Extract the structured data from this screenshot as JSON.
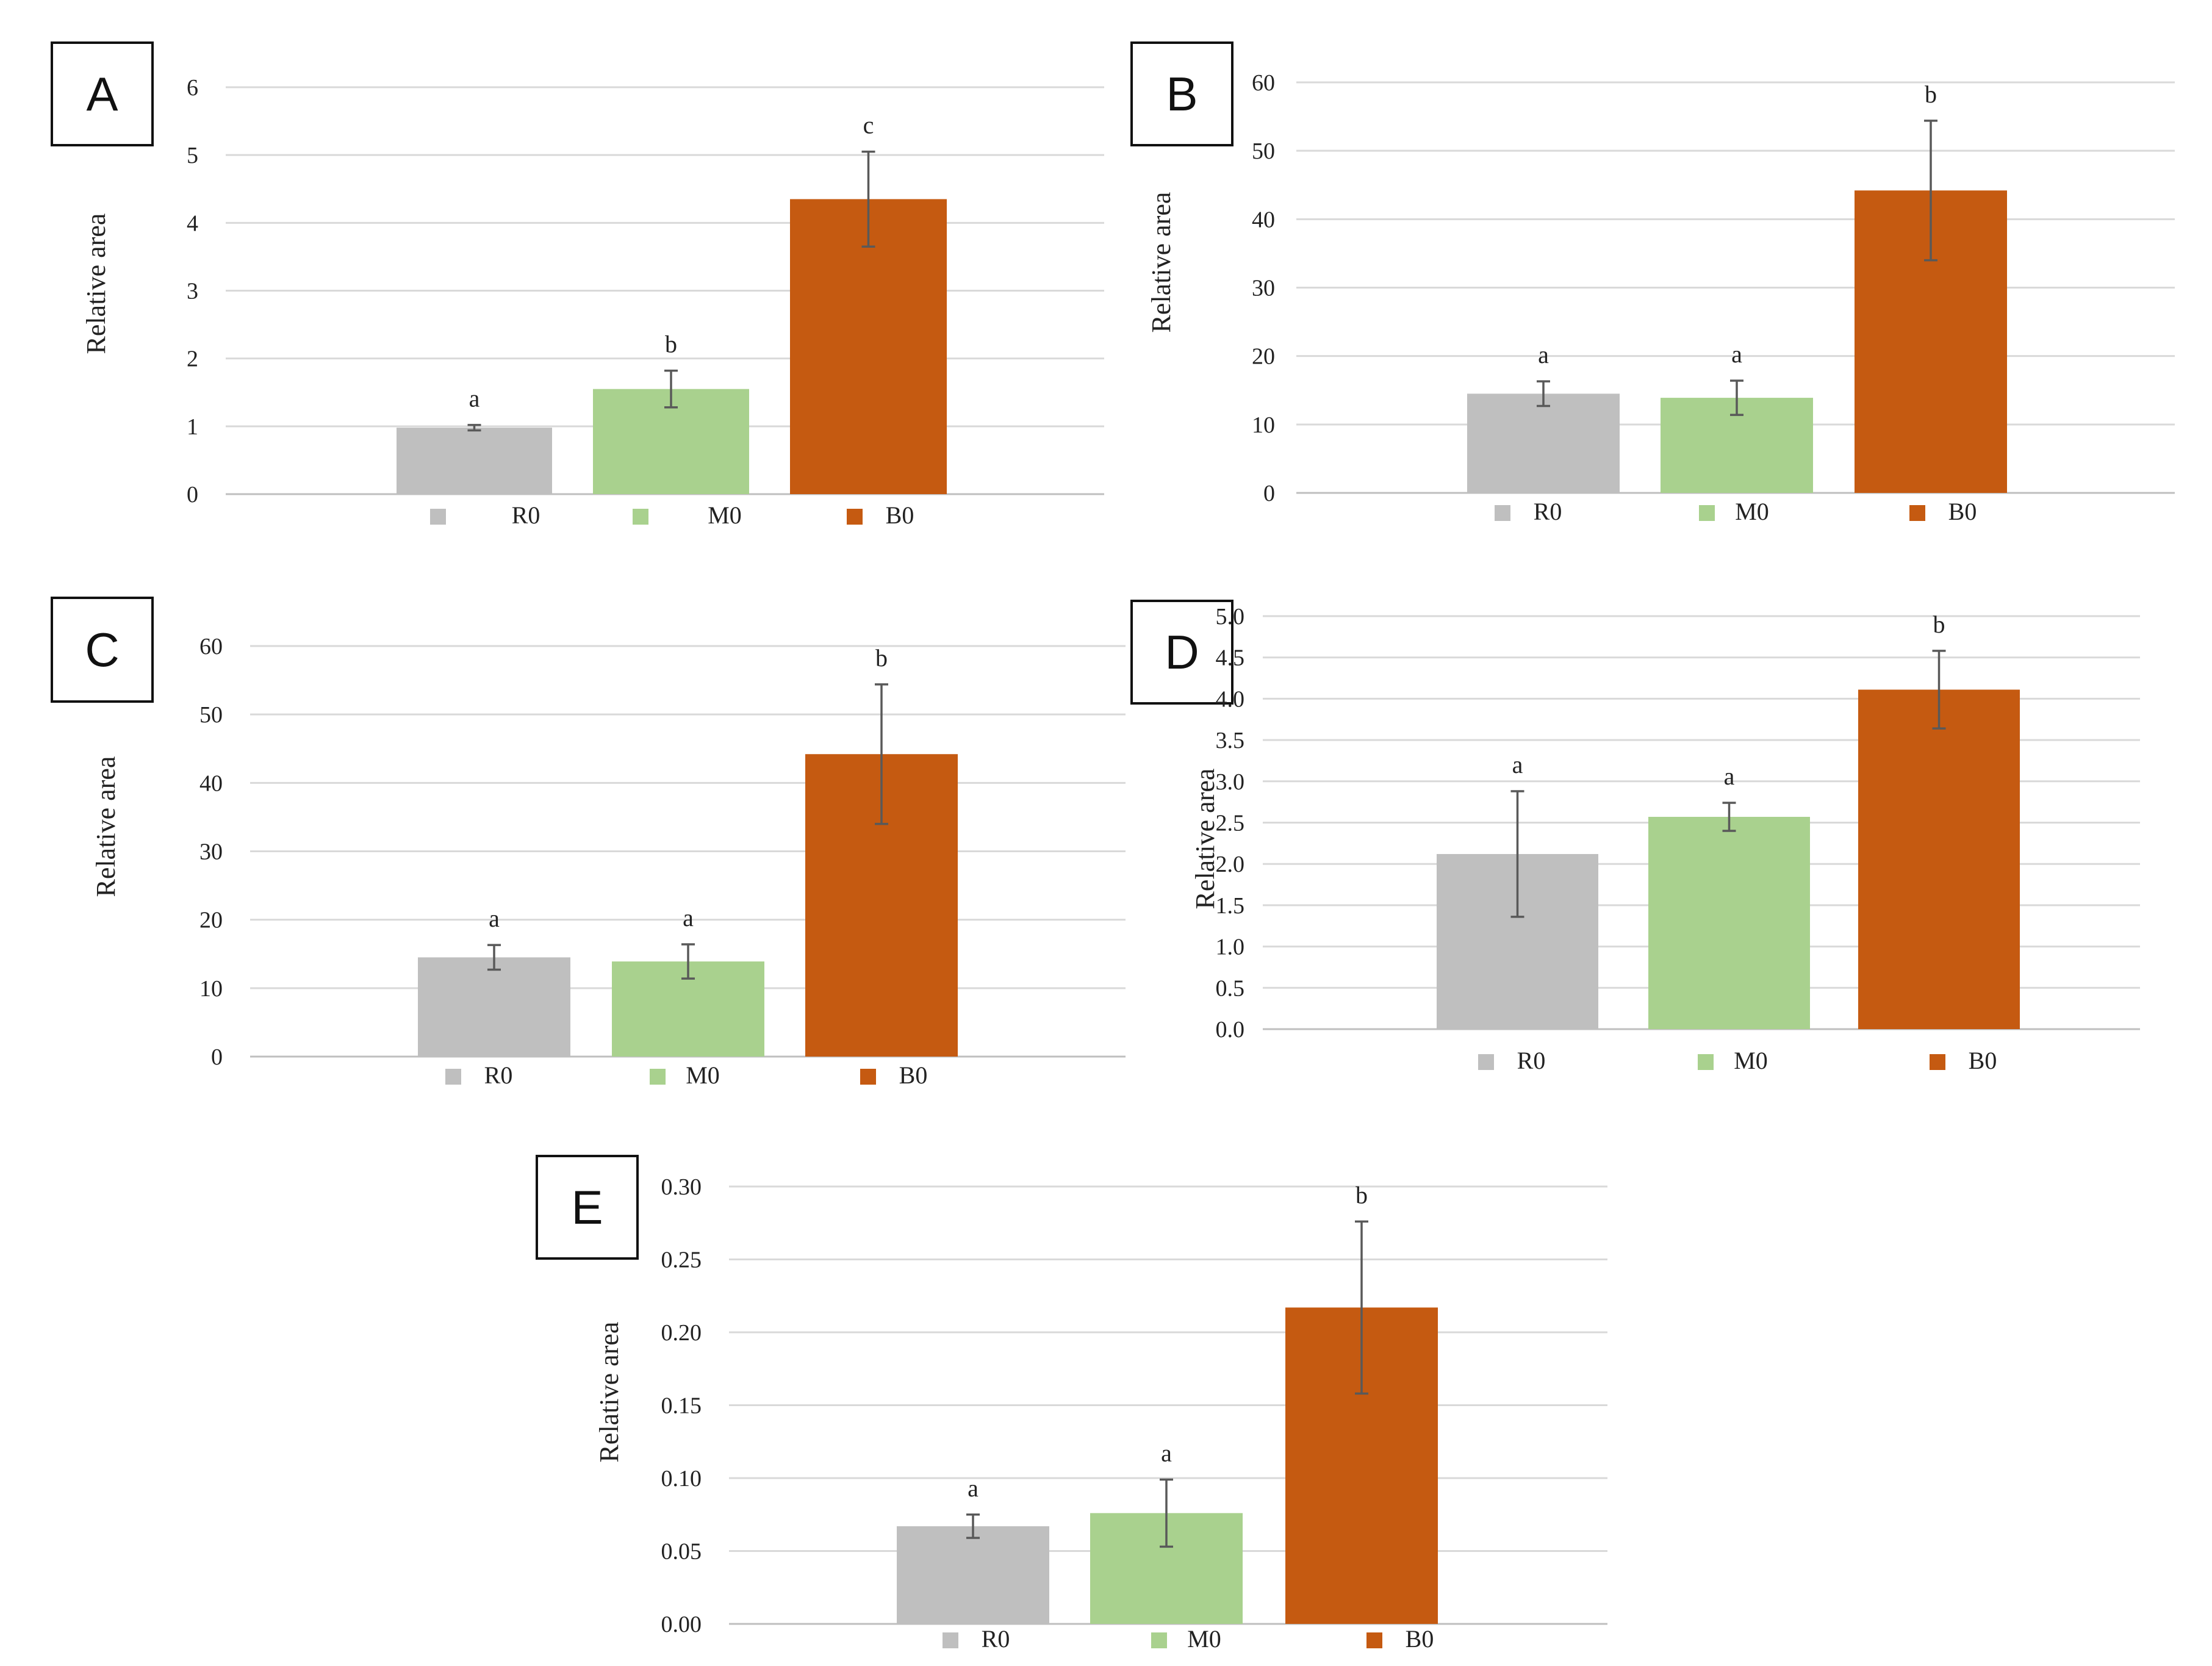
{
  "colors": {
    "R0": "#bfbfbf",
    "M0": "#a9d18e",
    "B0": "#c55a11",
    "grid": "#d9d9d9",
    "error_bar": "#595959",
    "text": "#222222"
  },
  "chart_data": [
    {
      "type": "bar",
      "panel": "A",
      "ylabel": "Relative area",
      "categories": [
        "R0",
        "M0",
        "B0"
      ],
      "values": [
        0.98,
        1.55,
        4.35
      ],
      "errors": [
        0.04,
        0.27,
        0.7
      ],
      "letters": [
        "a",
        "b",
        "c"
      ],
      "ylim": [
        0,
        6
      ],
      "ticks": [
        "0",
        "1",
        "2",
        "3",
        "4",
        "5",
        "6"
      ],
      "legend": [
        "R0",
        "M0",
        "B0"
      ],
      "legend_position": "bottom",
      "grid": true
    },
    {
      "type": "bar",
      "panel": "B",
      "ylabel": "Relative area",
      "categories": [
        "R0",
        "M0",
        "B0"
      ],
      "values": [
        14.5,
        13.9,
        44.2
      ],
      "errors": [
        1.8,
        2.5,
        10.2
      ],
      "letters": [
        "a",
        "a",
        "b"
      ],
      "ylim": [
        0,
        60
      ],
      "ticks": [
        "0",
        "10",
        "20",
        "30",
        "40",
        "50",
        "60"
      ],
      "legend": [
        "R0",
        "M0",
        "B0"
      ],
      "legend_position": "bottom",
      "grid": true
    },
    {
      "type": "bar",
      "panel": "C",
      "ylabel": "Relative area",
      "categories": [
        "R0",
        "M0",
        "B0"
      ],
      "values": [
        14.5,
        13.9,
        44.2
      ],
      "errors": [
        1.8,
        2.5,
        10.2
      ],
      "letters": [
        "a",
        "a",
        "b"
      ],
      "ylim": [
        0,
        60
      ],
      "ticks": [
        "0",
        "10",
        "20",
        "30",
        "40",
        "50",
        "60"
      ],
      "legend": [
        "R0",
        "M0",
        "B0"
      ],
      "legend_position": "bottom",
      "grid": true
    },
    {
      "type": "bar",
      "panel": "D",
      "ylabel": "Relative area",
      "categories": [
        "R0",
        "M0",
        "B0"
      ],
      "values": [
        2.12,
        2.57,
        4.11
      ],
      "errors": [
        0.76,
        0.17,
        0.47
      ],
      "letters": [
        "a",
        "a",
        "b"
      ],
      "ylim": [
        0,
        5
      ],
      "ticks": [
        "0.0",
        "0.5",
        "1.0",
        "1.5",
        "2.0",
        "2.5",
        "3.0",
        "3.5",
        "4.0",
        "4.5",
        "5.0"
      ],
      "legend": [
        "R0",
        "M0",
        "B0"
      ],
      "legend_position": "bottom",
      "grid": true
    },
    {
      "type": "bar",
      "panel": "E",
      "ylabel": "Relative area",
      "categories": [
        "R0",
        "M0",
        "B0"
      ],
      "values": [
        0.067,
        0.076,
        0.217
      ],
      "errors": [
        0.008,
        0.023,
        0.059
      ],
      "letters": [
        "a",
        "a",
        "b"
      ],
      "ylim": [
        0,
        0.3
      ],
      "ticks": [
        "0.00",
        "0.05",
        "0.10",
        "0.15",
        "0.20",
        "0.25",
        "0.30"
      ],
      "legend": [
        "R0",
        "M0",
        "B0"
      ],
      "legend_position": "bottom",
      "grid": true
    }
  ]
}
